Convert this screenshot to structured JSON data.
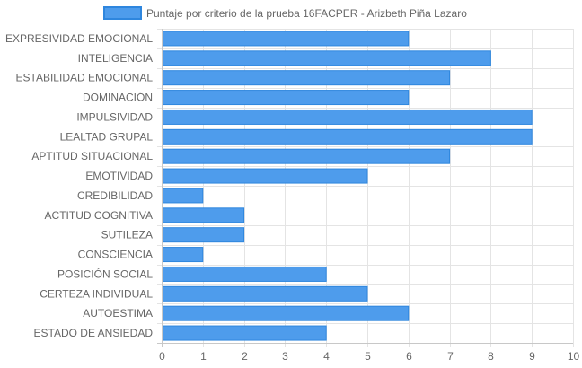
{
  "chart_data": {
    "type": "bar",
    "orientation": "horizontal",
    "categories": [
      "EXPRESIVIDAD EMOCIONAL",
      "INTELIGENCIA",
      "ESTABILIDAD EMOCIONAL",
      "DOMINACIÓN",
      "IMPULSIVIDAD",
      "LEALTAD GRUPAL",
      "APTITUD SITUACIONAL",
      "EMOTIVIDAD",
      "CREDIBILIDAD",
      "ACTITUD COGNITIVA",
      "SUTILEZA",
      "CONSCIENCIA",
      "POSICIÓN SOCIAL",
      "CERTEZA INDIVIDUAL",
      "AUTOESTIMA",
      "ESTADO DE ANSIEDAD"
    ],
    "series": [
      {
        "name": "Puntaje por criterio de la prueba 16FACPER - Arizbeth Piña Lazaro",
        "values": [
          6,
          8,
          7,
          6,
          9,
          9,
          7,
          5,
          1,
          2,
          2,
          1,
          4,
          5,
          6,
          4
        ]
      }
    ],
    "xlim": [
      0,
      10
    ],
    "xticks": [
      "0",
      "1",
      "2",
      "3",
      "4",
      "5",
      "6",
      "7",
      "8",
      "9",
      "10"
    ],
    "grid": true,
    "legend_position": "top",
    "colors": {
      "bar_fill": "#4e9cec",
      "bar_stroke": "#2e86de",
      "grid": "#e4e4e4",
      "axis": "#c8c8c8",
      "text": "#666666"
    }
  }
}
